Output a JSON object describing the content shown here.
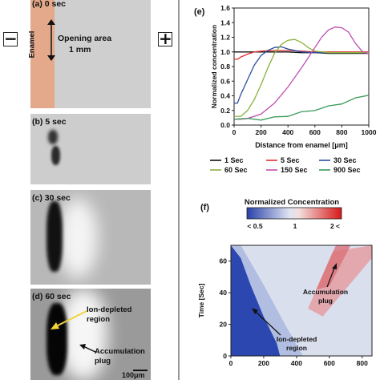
{
  "left": {
    "minus_sign": "−",
    "plus_sign": "+",
    "panel_a": {
      "label": "(a) 0 sec",
      "enamel": "Enamel",
      "opening_line1": "Opening area",
      "opening_line2": "1 mm"
    },
    "panel_b": {
      "label": "(b) 5 sec"
    },
    "panel_c": {
      "label": "(c) 30 sec"
    },
    "panel_d": {
      "label": "(d) 60 sec",
      "ion_line1": "Ion-depleted",
      "ion_line2": "region",
      "acc_line1": "Accumulation",
      "acc_line2": "plug",
      "scale": "100μm"
    }
  },
  "panel_e": {
    "label": "(e)",
    "legend": [
      {
        "name": "1 Sec",
        "color": "#111111"
      },
      {
        "name": "5 Sec",
        "color": "#e03030"
      },
      {
        "name": "30 Sec",
        "color": "#2a4fa0"
      },
      {
        "name": "60 Sec",
        "color": "#8bb03a"
      },
      {
        "name": "150 Sec",
        "color": "#c04fb0"
      },
      {
        "name": "900 Sec",
        "color": "#3a9a5a"
      }
    ]
  },
  "panel_f": {
    "label": "(f)",
    "colorbar_title": "Normalized Concentration",
    "colorbar_ticks": [
      "< 0.5",
      "1",
      "2 <"
    ],
    "ion_line1": "Ion-depleted",
    "ion_line2": "region",
    "acc_line1": "Accumulation",
    "acc_line2": "plug",
    "ylabel": "Time [Sec]",
    "yticks": [
      "0",
      "20",
      "40",
      "60"
    ],
    "xticks": [
      "0",
      "200",
      "400",
      "600",
      "800"
    ]
  },
  "chart_data": [
    {
      "type": "line",
      "xlabel": "Distance from enamel [μm]",
      "ylabel": "Normalized concentration",
      "xlim": [
        0,
        1000
      ],
      "ylim": [
        0,
        1.6
      ],
      "xticks": [
        0,
        200,
        400,
        600,
        800,
        1000
      ],
      "yticks": [
        0,
        0.2,
        0.4,
        0.6,
        0.8,
        1.0,
        1.2,
        1.4,
        1.6
      ],
      "series": [
        {
          "name": "1 Sec",
          "x": [
            0,
            50,
            100,
            200,
            300,
            400,
            500,
            600,
            700,
            800,
            900,
            1000
          ],
          "y": [
            1.0,
            1.0,
            1.0,
            1.0,
            1.0,
            1.0,
            0.99,
            0.99,
            0.98,
            0.98,
            0.98,
            0.98
          ]
        },
        {
          "name": "5 Sec",
          "x": [
            0,
            25,
            50,
            100,
            150,
            200,
            300,
            400,
            500,
            600,
            700,
            800,
            900,
            1000
          ],
          "y": [
            0.9,
            0.9,
            0.93,
            0.97,
            1.0,
            1.01,
            1.02,
            1.02,
            1.01,
            1.0,
            1.0,
            1.0,
            1.0,
            1.0
          ]
        },
        {
          "name": "30 Sec",
          "x": [
            0,
            25,
            50,
            100,
            150,
            200,
            250,
            300,
            350,
            400,
            500,
            600,
            700,
            800,
            900,
            1000
          ],
          "y": [
            0.3,
            0.3,
            0.42,
            0.62,
            0.82,
            0.95,
            1.02,
            1.06,
            1.07,
            1.04,
            1.0,
            0.99,
            0.99,
            0.99,
            0.99,
            0.99
          ]
        },
        {
          "name": "60 Sec",
          "x": [
            0,
            50,
            100,
            150,
            200,
            250,
            300,
            350,
            400,
            450,
            500,
            550,
            600,
            700,
            800,
            900,
            1000
          ],
          "y": [
            0.12,
            0.12,
            0.2,
            0.35,
            0.55,
            0.78,
            0.98,
            1.1,
            1.16,
            1.17,
            1.13,
            1.06,
            1.01,
            0.99,
            0.99,
            0.99,
            0.99
          ]
        },
        {
          "name": "150 Sec",
          "x": [
            0,
            50,
            100,
            200,
            300,
            400,
            500,
            550,
            600,
            650,
            700,
            750,
            800,
            850,
            900,
            950,
            1000
          ],
          "y": [
            0.08,
            0.08,
            0.09,
            0.15,
            0.3,
            0.52,
            0.78,
            0.92,
            1.06,
            1.2,
            1.3,
            1.34,
            1.33,
            1.27,
            1.12,
            1.01,
            0.97
          ]
        },
        {
          "name": "900 Sec",
          "x": [
            0,
            100,
            200,
            300,
            400,
            500,
            600,
            700,
            800,
            900,
            1000
          ],
          "y": [
            0.08,
            0.08,
            0.08,
            0.1,
            0.13,
            0.17,
            0.21,
            0.25,
            0.3,
            0.36,
            0.42
          ]
        }
      ]
    },
    {
      "type": "heatmap",
      "ylabel": "Time [Sec]",
      "xlim": [
        0,
        860
      ],
      "ylim": [
        0,
        70
      ],
      "xticks": [
        0,
        200,
        400,
        600,
        800
      ],
      "yticks": [
        0,
        20,
        40,
        60
      ],
      "colorbar": {
        "min_label": "< 0.5",
        "mid_label": "1",
        "max_label": "2 <"
      }
    }
  ]
}
